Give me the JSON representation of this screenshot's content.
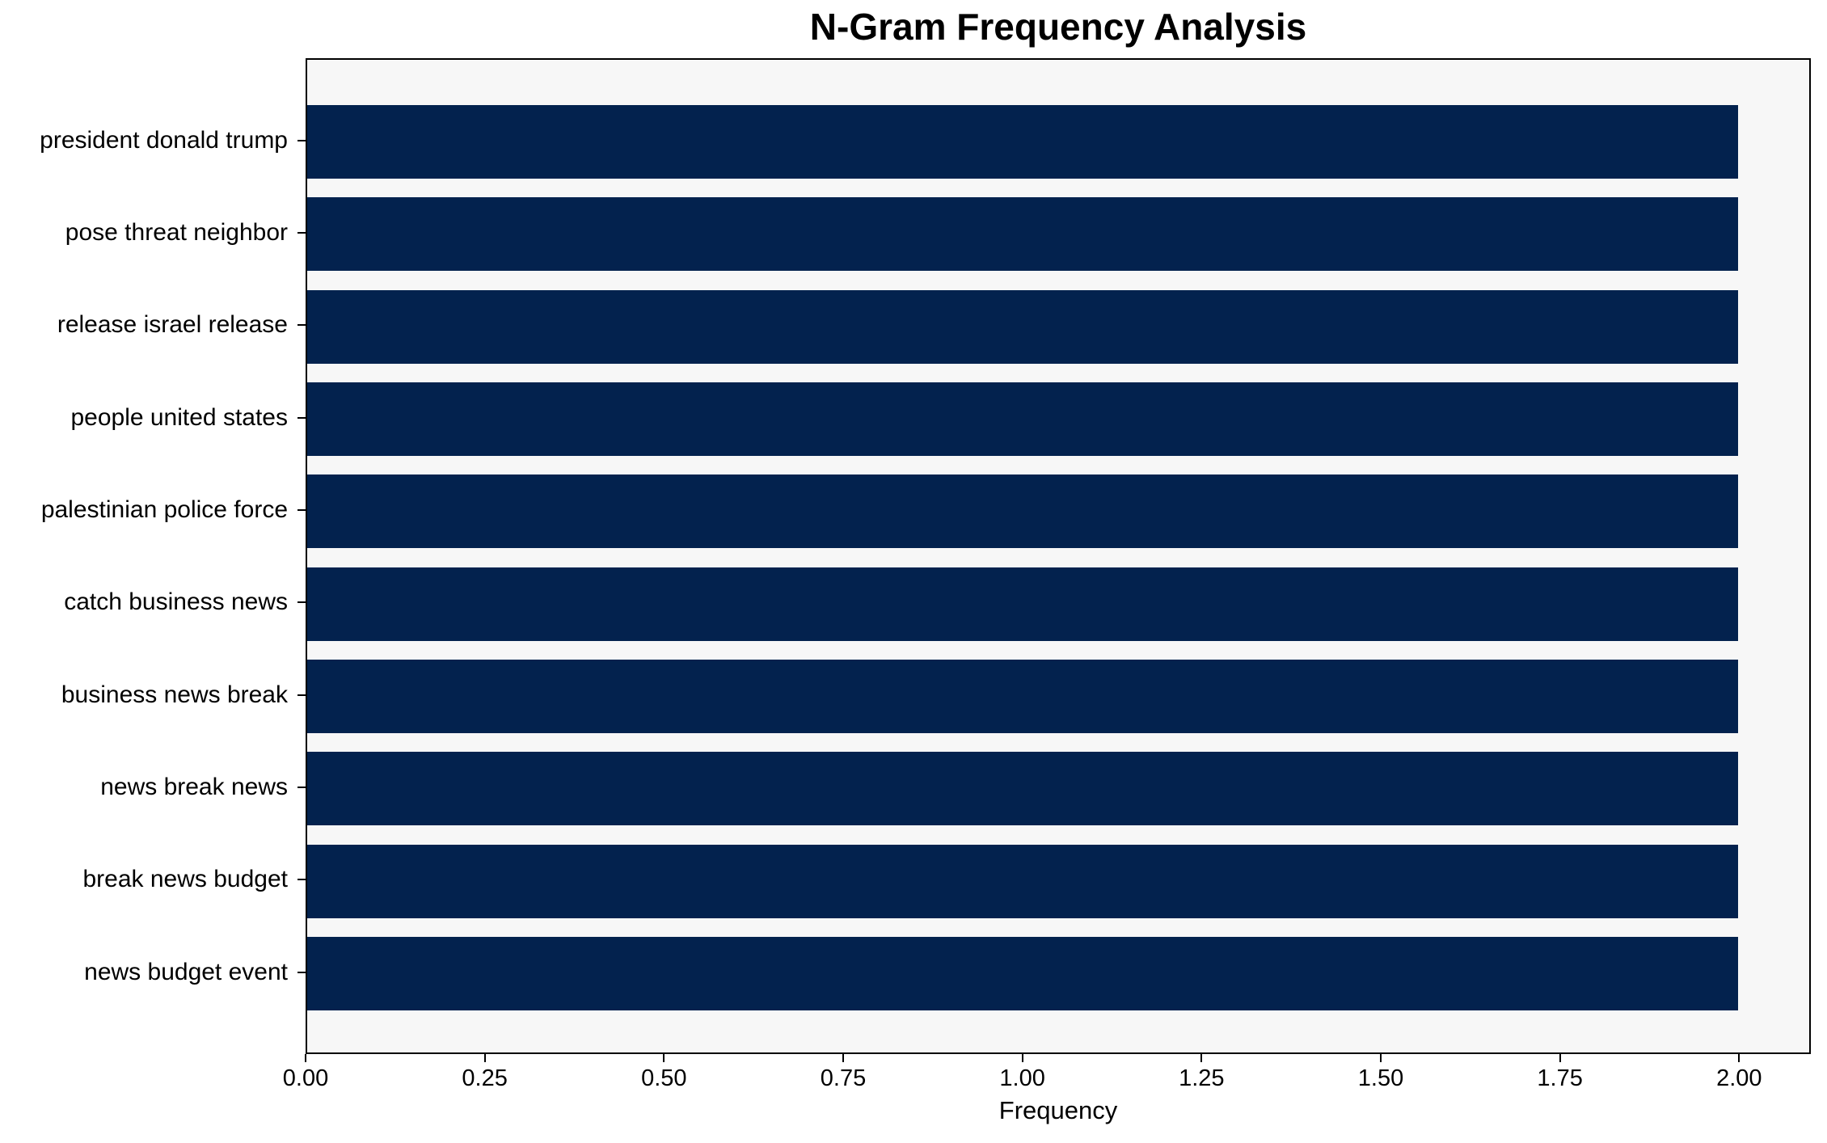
{
  "chart_data": {
    "type": "bar",
    "orientation": "horizontal",
    "title": "N-Gram Frequency Analysis",
    "xlabel": "Frequency",
    "ylabel": "",
    "categories": [
      "president donald trump",
      "pose threat neighbor",
      "release israel release",
      "people united states",
      "palestinian police force",
      "catch business news",
      "business news break",
      "news break news",
      "break news budget",
      "news budget event"
    ],
    "values": [
      2,
      2,
      2,
      2,
      2,
      2,
      2,
      2,
      2,
      2
    ],
    "xlim": [
      0,
      2.1
    ],
    "xtick_values": [
      0.0,
      0.25,
      0.5,
      0.75,
      1.0,
      1.25,
      1.5,
      1.75,
      2.0
    ],
    "xtick_labels": [
      "0.00",
      "0.25",
      "0.50",
      "0.75",
      "1.00",
      "1.25",
      "1.50",
      "1.75",
      "2.00"
    ],
    "grid": false,
    "legend": null,
    "colors": {
      "bar": "#03224e",
      "plot_background": "#f7f7f7",
      "figure_background": "#ffffff",
      "spine": "#000000",
      "text": "#000000"
    }
  }
}
